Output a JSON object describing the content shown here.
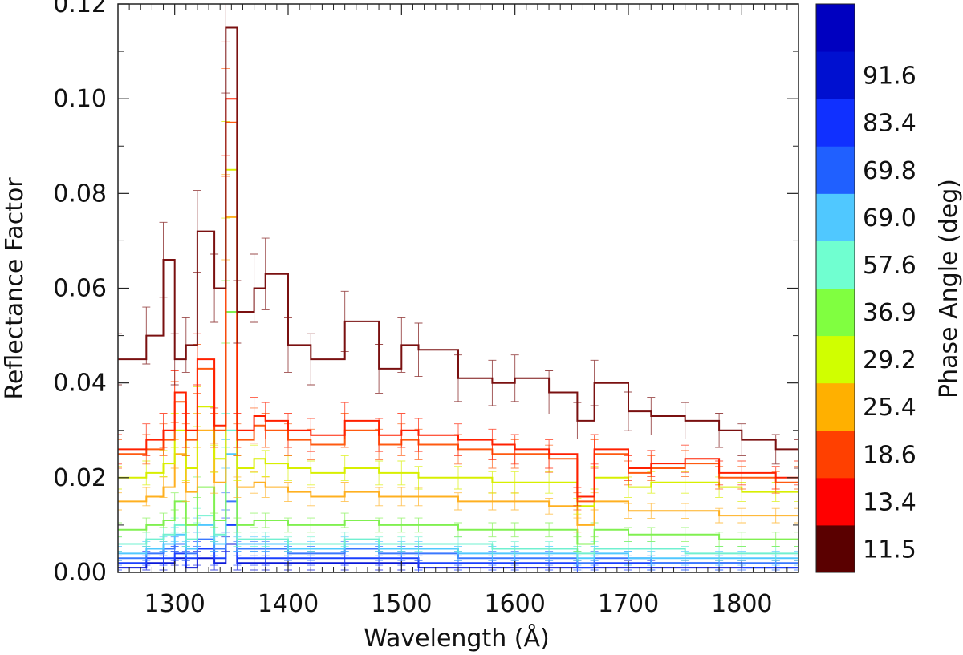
{
  "chart_data": {
    "type": "line",
    "xlabel": "Wavelength (Å)",
    "ylabel": "Reflectance Factor",
    "xlim": [
      1250,
      1850
    ],
    "ylim": [
      0.0,
      0.12
    ],
    "x_ticks": [
      1300,
      1400,
      1500,
      1600,
      1700,
      1800
    ],
    "y_ticks": [
      0.0,
      0.02,
      0.04,
      0.06,
      0.08,
      0.1,
      0.12
    ],
    "y_tick_labels": [
      "0.00",
      "0.02",
      "0.04",
      "0.06",
      "0.08",
      "0.10",
      "0.12"
    ],
    "x_points": [
      1250,
      1275,
      1290,
      1300,
      1310,
      1320,
      1335,
      1345,
      1355,
      1370,
      1380,
      1400,
      1420,
      1450,
      1480,
      1500,
      1515,
      1550,
      1580,
      1600,
      1630,
      1655,
      1670,
      1700,
      1720,
      1750,
      1780,
      1800,
      1830,
      1850
    ],
    "colorbar": {
      "label": "Phase Angle (deg)",
      "labels": [
        "11.5",
        "13.4",
        "18.6",
        "25.4",
        "29.2",
        "36.9",
        "57.6",
        "69.0",
        "69.8",
        "83.4",
        "91.6"
      ],
      "colors": [
        "#5a0000",
        "#ff0000",
        "#ff4000",
        "#ffb000",
        "#d0ff00",
        "#80ff40",
        "#70ffd0",
        "#50c8ff",
        "#2060ff",
        "#1030ff",
        "#0010d0",
        "#0000c0"
      ]
    },
    "series": [
      {
        "phase_deg": 11.5,
        "color": "#7a1010",
        "values": [
          0.045,
          0.05,
          0.066,
          0.045,
          0.048,
          0.072,
          0.06,
          0.115,
          0.055,
          0.06,
          0.063,
          0.048,
          0.045,
          0.053,
          0.043,
          0.048,
          0.047,
          0.041,
          0.04,
          0.041,
          0.038,
          0.032,
          0.04,
          0.034,
          0.033,
          0.032,
          0.03,
          0.028,
          0.026,
          0.025
        ]
      },
      {
        "phase_deg": 13.4,
        "color": "#ff2000",
        "values": [
          0.026,
          0.028,
          0.03,
          0.038,
          0.03,
          0.045,
          0.031,
          0.1,
          0.03,
          0.033,
          0.032,
          0.03,
          0.029,
          0.032,
          0.029,
          0.03,
          0.029,
          0.028,
          0.027,
          0.026,
          0.025,
          0.016,
          0.026,
          0.022,
          0.023,
          0.024,
          0.021,
          0.021,
          0.02,
          0.021
        ]
      },
      {
        "phase_deg": 18.6,
        "color": "#ff5a10",
        "values": [
          0.025,
          0.026,
          0.028,
          0.036,
          0.028,
          0.043,
          0.03,
          0.095,
          0.028,
          0.031,
          0.03,
          0.028,
          0.027,
          0.03,
          0.027,
          0.028,
          0.027,
          0.026,
          0.025,
          0.025,
          0.024,
          0.015,
          0.025,
          0.021,
          0.022,
          0.023,
          0.02,
          0.02,
          0.019,
          0.02
        ]
      },
      {
        "phase_deg": 25.4,
        "color": "#d8ef00",
        "values": [
          0.02,
          0.021,
          0.023,
          0.03,
          0.022,
          0.035,
          0.024,
          0.085,
          0.022,
          0.024,
          0.023,
          0.022,
          0.021,
          0.022,
          0.021,
          0.021,
          0.02,
          0.02,
          0.019,
          0.019,
          0.019,
          0.014,
          0.02,
          0.018,
          0.019,
          0.019,
          0.018,
          0.017,
          0.017,
          0.017
        ]
      },
      {
        "phase_deg": 29.2,
        "color": "#ffb020",
        "values": [
          0.015,
          0.016,
          0.018,
          0.025,
          0.017,
          0.03,
          0.019,
          0.075,
          0.018,
          0.019,
          0.018,
          0.017,
          0.016,
          0.017,
          0.016,
          0.016,
          0.016,
          0.015,
          0.015,
          0.015,
          0.014,
          0.01,
          0.015,
          0.013,
          0.013,
          0.013,
          0.012,
          0.012,
          0.012,
          0.012
        ]
      },
      {
        "phase_deg": 36.9,
        "color": "#80f050",
        "values": [
          0.009,
          0.01,
          0.011,
          0.015,
          0.01,
          0.018,
          0.011,
          0.055,
          0.01,
          0.011,
          0.011,
          0.01,
          0.01,
          0.011,
          0.01,
          0.01,
          0.01,
          0.009,
          0.009,
          0.009,
          0.009,
          0.006,
          0.009,
          0.008,
          0.008,
          0.008,
          0.007,
          0.007,
          0.007,
          0.007
        ]
      },
      {
        "phase_deg": 57.6,
        "color": "#70f0d0",
        "values": [
          0.006,
          0.007,
          0.008,
          0.01,
          0.007,
          0.012,
          0.008,
          0.03,
          0.007,
          0.007,
          0.007,
          0.006,
          0.006,
          0.007,
          0.006,
          0.006,
          0.006,
          0.006,
          0.005,
          0.005,
          0.005,
          0.004,
          0.005,
          0.005,
          0.005,
          0.004,
          0.004,
          0.004,
          0.004,
          0.004
        ]
      },
      {
        "phase_deg": 69.0,
        "color": "#50c8ff",
        "values": [
          0.004,
          0.005,
          0.006,
          0.008,
          0.005,
          0.01,
          0.006,
          0.025,
          0.006,
          0.006,
          0.006,
          0.005,
          0.005,
          0.006,
          0.005,
          0.005,
          0.005,
          0.004,
          0.004,
          0.004,
          0.004,
          0.003,
          0.004,
          0.003,
          0.003,
          0.003,
          0.003,
          0.003,
          0.003,
          0.003
        ]
      },
      {
        "phase_deg": 69.8,
        "color": "#3a78ff",
        "values": [
          0.003,
          0.004,
          0.005,
          0.006,
          0.004,
          0.007,
          0.005,
          0.015,
          0.005,
          0.005,
          0.005,
          0.004,
          0.004,
          0.005,
          0.004,
          0.004,
          0.004,
          0.003,
          0.003,
          0.003,
          0.003,
          0.002,
          0.003,
          0.003,
          0.002,
          0.002,
          0.002,
          0.002,
          0.002,
          0.002
        ]
      },
      {
        "phase_deg": 83.4,
        "color": "#1a40ff",
        "values": [
          0.002,
          0.003,
          0.003,
          0.004,
          0.003,
          0.005,
          0.003,
          0.01,
          0.003,
          0.003,
          0.003,
          0.003,
          0.003,
          0.003,
          0.003,
          0.003,
          0.002,
          0.002,
          0.002,
          0.002,
          0.002,
          0.001,
          0.002,
          0.002,
          0.002,
          0.002,
          0.002,
          0.001,
          0.001,
          0.001
        ]
      },
      {
        "phase_deg": 91.6,
        "color": "#0a18d8",
        "values": [
          0.001,
          0.002,
          0.002,
          0.003,
          0.001,
          0.003,
          0.002,
          0.006,
          0.002,
          0.002,
          0.002,
          0.002,
          0.002,
          0.002,
          0.002,
          0.002,
          0.001,
          0.001,
          0.001,
          0.001,
          0.001,
          0.001,
          0.001,
          0.001,
          0.001,
          0.001,
          0.001,
          0.001,
          0.001,
          0.001
        ]
      }
    ]
  }
}
